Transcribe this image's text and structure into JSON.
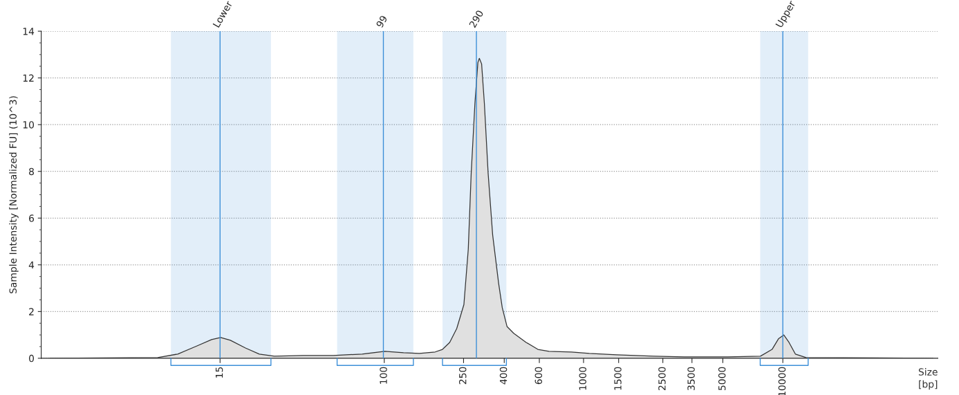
{
  "chart_data": {
    "type": "area",
    "ylabel": "Sample Intensity [Normalized FU] (10^3)",
    "xlabel": "Size\n[bp]",
    "x": [
      2.1,
      7.3,
      9.2,
      11.5,
      13.6,
      15.1,
      16.9,
      20.1,
      23.6,
      28.1,
      39.2,
      55.5,
      77.5,
      100.6,
      125,
      150,
      180,
      196,
      213,
      231,
      251,
      264,
      273,
      285,
      295,
      300,
      308,
      318,
      332,
      350,
      375,
      391,
      413,
      446,
      515,
      590,
      671,
      869,
      1069,
      1465,
      2246,
      3206,
      5280,
      7719,
      8832,
      9506,
      10110,
      10740,
      11560,
      13070,
      56840
    ],
    "series": [
      {
        "color": "#e0e0e0",
        "values": [
          0,
          0.03,
          0.18,
          0.53,
          0.8,
          0.89,
          0.77,
          0.44,
          0.18,
          0.09,
          0.12,
          0.12,
          0.18,
          0.3,
          0.24,
          0.21,
          0.27,
          0.38,
          0.68,
          1.27,
          2.3,
          4.67,
          7.9,
          10.9,
          12.66,
          12.84,
          12.6,
          10.9,
          7.93,
          5.27,
          3.2,
          2.16,
          1.36,
          1.07,
          0.68,
          0.38,
          0.3,
          0.27,
          0.21,
          0.15,
          0.09,
          0.06,
          0.06,
          0.09,
          0.38,
          0.83,
          1.0,
          0.68,
          0.18,
          0.03,
          0
        ]
      }
    ],
    "xlim": [
      1.9,
      60000
    ],
    "ylim": [
      0,
      14
    ],
    "yticks": [
      0,
      2,
      4,
      6,
      8,
      10,
      12,
      14
    ],
    "xticks": [
      15,
      100,
      250,
      400,
      600,
      1000,
      1500,
      2500,
      3500,
      5000,
      10000
    ],
    "grid": "y",
    "log": "x",
    "ref_lines": [
      {
        "axis": "x",
        "value": 15,
        "label": "Lower",
        "color": "#3c8fd8"
      },
      {
        "axis": "x",
        "value": 99,
        "label": "99",
        "color": "#3c8fd8"
      },
      {
        "axis": "x",
        "value": 290,
        "label": "290",
        "color": "#3c8fd8"
      },
      {
        "axis": "x",
        "value": 10000,
        "label": "Upper",
        "color": "#3c8fd8"
      }
    ],
    "bands": [
      {
        "axis": "x",
        "from": 8.5,
        "to": 27,
        "color": "#3c8fd8"
      },
      {
        "axis": "x",
        "from": 58,
        "to": 140,
        "color": "#3c8fd8"
      },
      {
        "axis": "x",
        "from": 196,
        "to": 410,
        "color": "#3c8fd8"
      },
      {
        "axis": "x",
        "from": 7700,
        "to": 13400,
        "color": "#3c8fd8"
      }
    ]
  }
}
